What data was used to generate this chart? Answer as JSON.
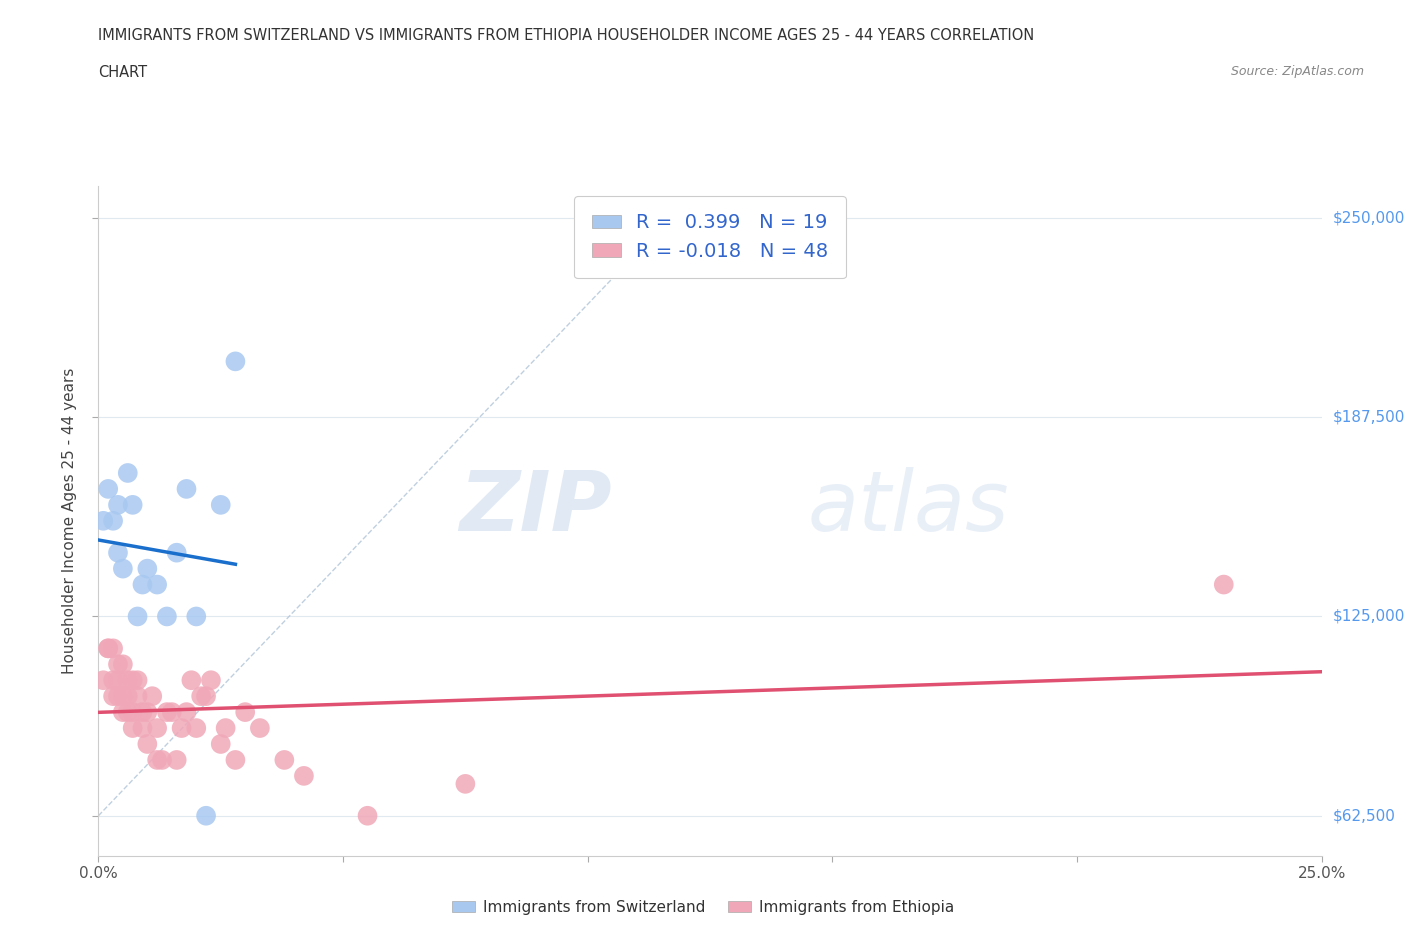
{
  "title_line1": "IMMIGRANTS FROM SWITZERLAND VS IMMIGRANTS FROM ETHIOPIA HOUSEHOLDER INCOME AGES 25 - 44 YEARS CORRELATION",
  "title_line2": "CHART",
  "source": "Source: ZipAtlas.com",
  "ylabel": "Householder Income Ages 25 - 44 years",
  "xlim": [
    0.0,
    0.25
  ],
  "ylim": [
    50000,
    260000
  ],
  "xtick_vals": [
    0.0,
    0.05,
    0.1,
    0.15,
    0.2,
    0.25
  ],
  "xtick_labels": [
    "0.0%",
    "",
    "",
    "",
    "",
    "25.0%"
  ],
  "ytick_vals": [
    62500,
    125000,
    187500,
    250000
  ],
  "ytick_labels": [
    "$62,500",
    "$125,000",
    "$187,500",
    "$250,000"
  ],
  "switzerland_color": "#a8c8f0",
  "ethiopia_color": "#f0a8b8",
  "switzerland_line_color": "#1a6fcc",
  "ethiopia_line_color": "#e05070",
  "ref_line_color": "#b0c4d8",
  "R_switzerland": 0.399,
  "N_switzerland": 19,
  "R_ethiopia": -0.018,
  "N_ethiopia": 48,
  "watermark_zip": "ZIP",
  "watermark_atlas": "atlas",
  "background_color": "#ffffff",
  "grid_color": "#e0e8f0",
  "legend_label_color": "#3366cc",
  "bottom_legend_color": "#333333",
  "sw_x": [
    0.001,
    0.002,
    0.003,
    0.004,
    0.004,
    0.005,
    0.006,
    0.007,
    0.008,
    0.009,
    0.01,
    0.012,
    0.014,
    0.016,
    0.018,
    0.02,
    0.022,
    0.025,
    0.028
  ],
  "sw_y": [
    155000,
    165000,
    155000,
    160000,
    145000,
    140000,
    170000,
    160000,
    125000,
    135000,
    140000,
    135000,
    125000,
    145000,
    165000,
    125000,
    62500,
    160000,
    205000
  ],
  "eth_x": [
    0.001,
    0.002,
    0.002,
    0.003,
    0.003,
    0.003,
    0.004,
    0.004,
    0.004,
    0.005,
    0.005,
    0.005,
    0.006,
    0.006,
    0.006,
    0.007,
    0.007,
    0.007,
    0.008,
    0.008,
    0.009,
    0.009,
    0.01,
    0.01,
    0.011,
    0.012,
    0.012,
    0.013,
    0.014,
    0.015,
    0.016,
    0.017,
    0.018,
    0.019,
    0.02,
    0.021,
    0.022,
    0.023,
    0.025,
    0.026,
    0.028,
    0.03,
    0.033,
    0.038,
    0.042,
    0.055,
    0.075,
    0.23
  ],
  "eth_y": [
    105000,
    115000,
    115000,
    115000,
    105000,
    100000,
    110000,
    105000,
    100000,
    110000,
    100000,
    95000,
    105000,
    100000,
    95000,
    105000,
    95000,
    90000,
    105000,
    100000,
    95000,
    90000,
    85000,
    95000,
    100000,
    80000,
    90000,
    80000,
    95000,
    95000,
    80000,
    90000,
    95000,
    105000,
    90000,
    100000,
    100000,
    105000,
    85000,
    90000,
    80000,
    95000,
    90000,
    80000,
    75000,
    62500,
    72500,
    135000
  ]
}
